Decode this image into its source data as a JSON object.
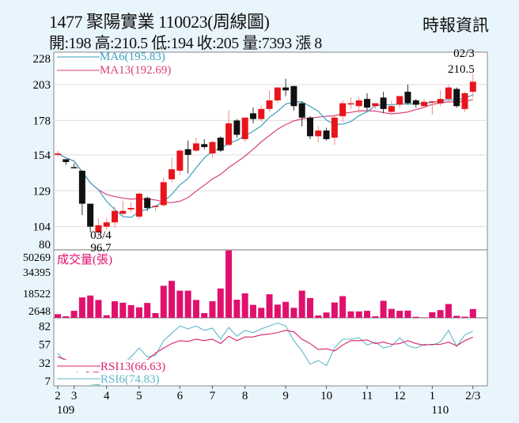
{
  "header": {
    "title": "1477  聚陽實業 110023(周線圖)",
    "quote": "開:198 高:210.5 低:194 收:205 量:7393 漲 8",
    "source": "時報資訊"
  },
  "colors": {
    "up": "#e8141b",
    "down": "#111111",
    "volume": "#e0106e",
    "ma6": "#3aa0be",
    "ma13": "#d8407a",
    "rsi6": "#5cb8c8",
    "rsi13": "#d8206a"
  },
  "chart_data": [
    {
      "type": "candlestick",
      "title": "price",
      "yticks": [
        228,
        203,
        178,
        154,
        129,
        104,
        80
      ],
      "legend": [
        {
          "label": "MA6(195.83)",
          "color": "#3aa0be"
        },
        {
          "label": "MA13(192.69)",
          "color": "#d8407a"
        }
      ],
      "annotations": [
        {
          "bar": 5,
          "date": "03/4",
          "value": "96.7",
          "pos": "below"
        },
        {
          "bar": 51,
          "date": "02/3",
          "value": "210.5",
          "pos": "above"
        }
      ],
      "open": [
        154,
        151,
        145.5,
        143,
        120,
        100,
        104,
        107,
        113,
        116,
        111,
        124,
        118,
        119,
        137,
        143,
        158,
        157,
        161.5,
        155,
        166,
        161,
        178,
        165,
        183,
        179,
        186,
        192,
        201,
        202,
        190,
        180,
        167,
        171,
        166,
        181,
        190,
        188,
        193,
        188,
        194,
        184,
        189,
        198,
        192,
        188,
        191,
        190,
        193,
        200,
        186,
        198
      ],
      "close": [
        155,
        149,
        145,
        120,
        104,
        105,
        107,
        115,
        115,
        117,
        127,
        117,
        118.5,
        135,
        144,
        157,
        154,
        162,
        159.5,
        163,
        157,
        176,
        168,
        180,
        179,
        186,
        192,
        201,
        199,
        188,
        180,
        167,
        171,
        165,
        180,
        190,
        190,
        192,
        187,
        190,
        186,
        188,
        195,
        190,
        189,
        191,
        191.3,
        193,
        201,
        188,
        197,
        205
      ],
      "high": [
        157,
        151,
        148,
        143,
        120,
        110,
        110,
        118,
        122,
        121,
        128,
        125,
        119,
        138,
        152,
        158,
        164,
        166,
        165,
        164,
        167,
        185,
        179,
        180,
        187,
        188,
        199,
        201,
        207,
        202,
        191,
        181,
        174,
        173,
        182,
        192,
        194,
        194,
        197,
        190,
        198,
        192,
        195,
        203,
        193,
        193,
        192,
        199,
        203,
        201,
        198,
        210.5
      ],
      "low": [
        153,
        147,
        145,
        112,
        100,
        96.7,
        102,
        103,
        112,
        114,
        109,
        115,
        115,
        118,
        135,
        140,
        141,
        156,
        158,
        152,
        156,
        160,
        166,
        163,
        176,
        177,
        184,
        190,
        195,
        185,
        174,
        165,
        163,
        164,
        161,
        177,
        186,
        183,
        185,
        186,
        183,
        182,
        187,
        189,
        187,
        187,
        182,
        188,
        191,
        187,
        184,
        194
      ]
    },
    {
      "type": "bar",
      "title": "成交量(張)",
      "yticks": [
        50269,
        34395,
        18522,
        2648
      ],
      "values": [
        3100,
        1300,
        5900,
        17100,
        18700,
        15000,
        2200,
        13900,
        12700,
        10700,
        8800,
        12500,
        4000,
        26900,
        31000,
        22800,
        22800,
        15000,
        4000,
        13900,
        24600,
        56500,
        15200,
        20500,
        10900,
        8400,
        19800,
        11100,
        13400,
        8400,
        22800,
        16600,
        2000,
        4500,
        12900,
        18200,
        5400,
        5400,
        5900,
        1300,
        14300,
        7500,
        5900,
        6100,
        900,
        400,
        4700,
        6500,
        11600,
        1700,
        1000,
        7393
      ]
    },
    {
      "type": "line",
      "title": "RSI",
      "yticks": [
        82,
        57,
        32,
        7
      ],
      "legend": [
        {
          "label": "RSI13(66.63)",
          "color": "#d8206a"
        },
        {
          "label": "RSI6(74.83)",
          "color": "#5cb8c8"
        }
      ],
      "series": [
        {
          "name": "RSI13",
          "values": [
            40,
            36,
            33,
            22,
            18,
            20,
            22,
            24,
            28,
            36,
            32,
            36,
            45,
            52,
            58,
            62,
            61,
            64,
            62,
            64,
            58,
            68,
            62,
            67,
            67,
            70,
            71,
            73,
            76,
            74,
            64,
            58,
            50,
            51,
            48,
            56,
            62,
            62,
            63,
            58,
            60,
            57,
            58,
            62,
            58,
            56,
            57,
            57,
            60,
            55,
            62,
            66.63
          ]
        },
        {
          "name": "RSI6",
          "values": [
            45,
            32,
            25,
            10,
            3,
            2,
            6,
            15,
            30,
            40,
            52,
            40,
            42,
            62,
            72,
            82,
            78,
            82,
            76,
            79,
            64,
            80,
            68,
            76,
            73,
            78,
            82,
            86,
            82,
            62,
            48,
            30,
            35,
            28,
            52,
            64,
            64,
            66,
            56,
            60,
            52,
            55,
            66,
            55,
            52,
            57,
            56,
            60,
            76,
            54,
            70,
            74.83
          ]
        }
      ]
    },
    {
      "type": "axis",
      "xticks": [
        {
          "bar": 0,
          "label": "2",
          "sub": "109"
        },
        {
          "bar": 2,
          "label": "3"
        },
        {
          "bar": 6,
          "label": "4"
        },
        {
          "bar": 10,
          "label": "5"
        },
        {
          "bar": 15,
          "label": "6"
        },
        {
          "bar": 19,
          "label": "7"
        },
        {
          "bar": 23,
          "label": "8"
        },
        {
          "bar": 28,
          "label": "9"
        },
        {
          "bar": 33,
          "label": "10"
        },
        {
          "bar": 38,
          "label": "11"
        },
        {
          "bar": 42,
          "label": "12"
        },
        {
          "bar": 46,
          "label": "1",
          "sub": "110"
        },
        {
          "bar": 51,
          "label": "2/3"
        }
      ]
    }
  ]
}
